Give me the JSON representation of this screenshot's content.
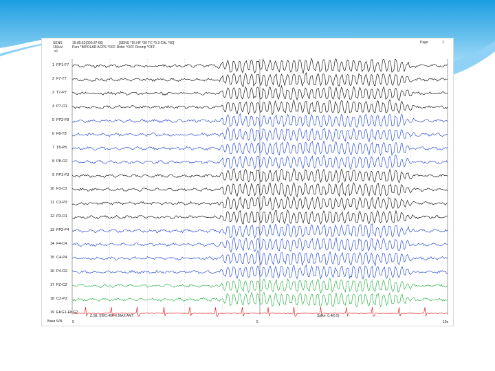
{
  "colors": {
    "banner_top": "#1b9de2",
    "banner_bottom": "#bfe8fb",
    "trace_black": "#1a1a1a",
    "trace_blue": "#2b4fd1",
    "trace_green": "#2fb24a",
    "trace_red": "#e02020"
  },
  "header": {
    "sens_label": "SENS",
    "sens_value": "150uV",
    "scale_label": "x1",
    "time_line": "15:05:52(000:37:06)",
    "settings_line": "[SENS *15 HF *30 TC *0.3 CAL *50]",
    "montage_line": "Pers *BIPOLAR ACPS *OFF Refer *OFF Rcomp *OFF",
    "page_label": "Page",
    "page_number": "1"
  },
  "channels": [
    {
      "num": "1",
      "name": "FP1-F7",
      "color": "black"
    },
    {
      "num": "2",
      "name": "F7-T7",
      "color": "black"
    },
    {
      "num": "3",
      "name": "T7-P7",
      "color": "black"
    },
    {
      "num": "4",
      "name": "P7-O1",
      "color": "black"
    },
    {
      "num": "5",
      "name": "FP2-F8",
      "color": "blue"
    },
    {
      "num": "6",
      "name": "F8-T8",
      "color": "blue"
    },
    {
      "num": "7",
      "name": "T8-P8",
      "color": "blue"
    },
    {
      "num": "8",
      "name": "P8-O2",
      "color": "blue"
    },
    {
      "num": "9",
      "name": "FP1-F3",
      "color": "black"
    },
    {
      "num": "10",
      "name": "F3-C3",
      "color": "black"
    },
    {
      "num": "11",
      "name": "C3-P3",
      "color": "black"
    },
    {
      "num": "12",
      "name": "P3-O1",
      "color": "black"
    },
    {
      "num": "13",
      "name": "FP2-F4",
      "color": "blue"
    },
    {
      "num": "14",
      "name": "F4-C4",
      "color": "blue"
    },
    {
      "num": "15",
      "name": "C4-P4",
      "color": "blue"
    },
    {
      "num": "16",
      "name": "P4-O2",
      "color": "blue"
    },
    {
      "num": "17",
      "name": "FZ-CZ",
      "color": "green"
    },
    {
      "num": "18",
      "name": "CZ-PZ",
      "color": "green"
    },
    {
      "num": "19",
      "name": "EKG1-EKG2",
      "color": "red"
    }
  ],
  "footer": {
    "time_start": "0",
    "time_mid": "5",
    "time_end": "10s",
    "page_left": "Base S/N",
    "zoom_text": "Z:SIL SWC:40 FK MAX AMT",
    "speed_text": "Spike: 0.4(6.5)"
  }
}
